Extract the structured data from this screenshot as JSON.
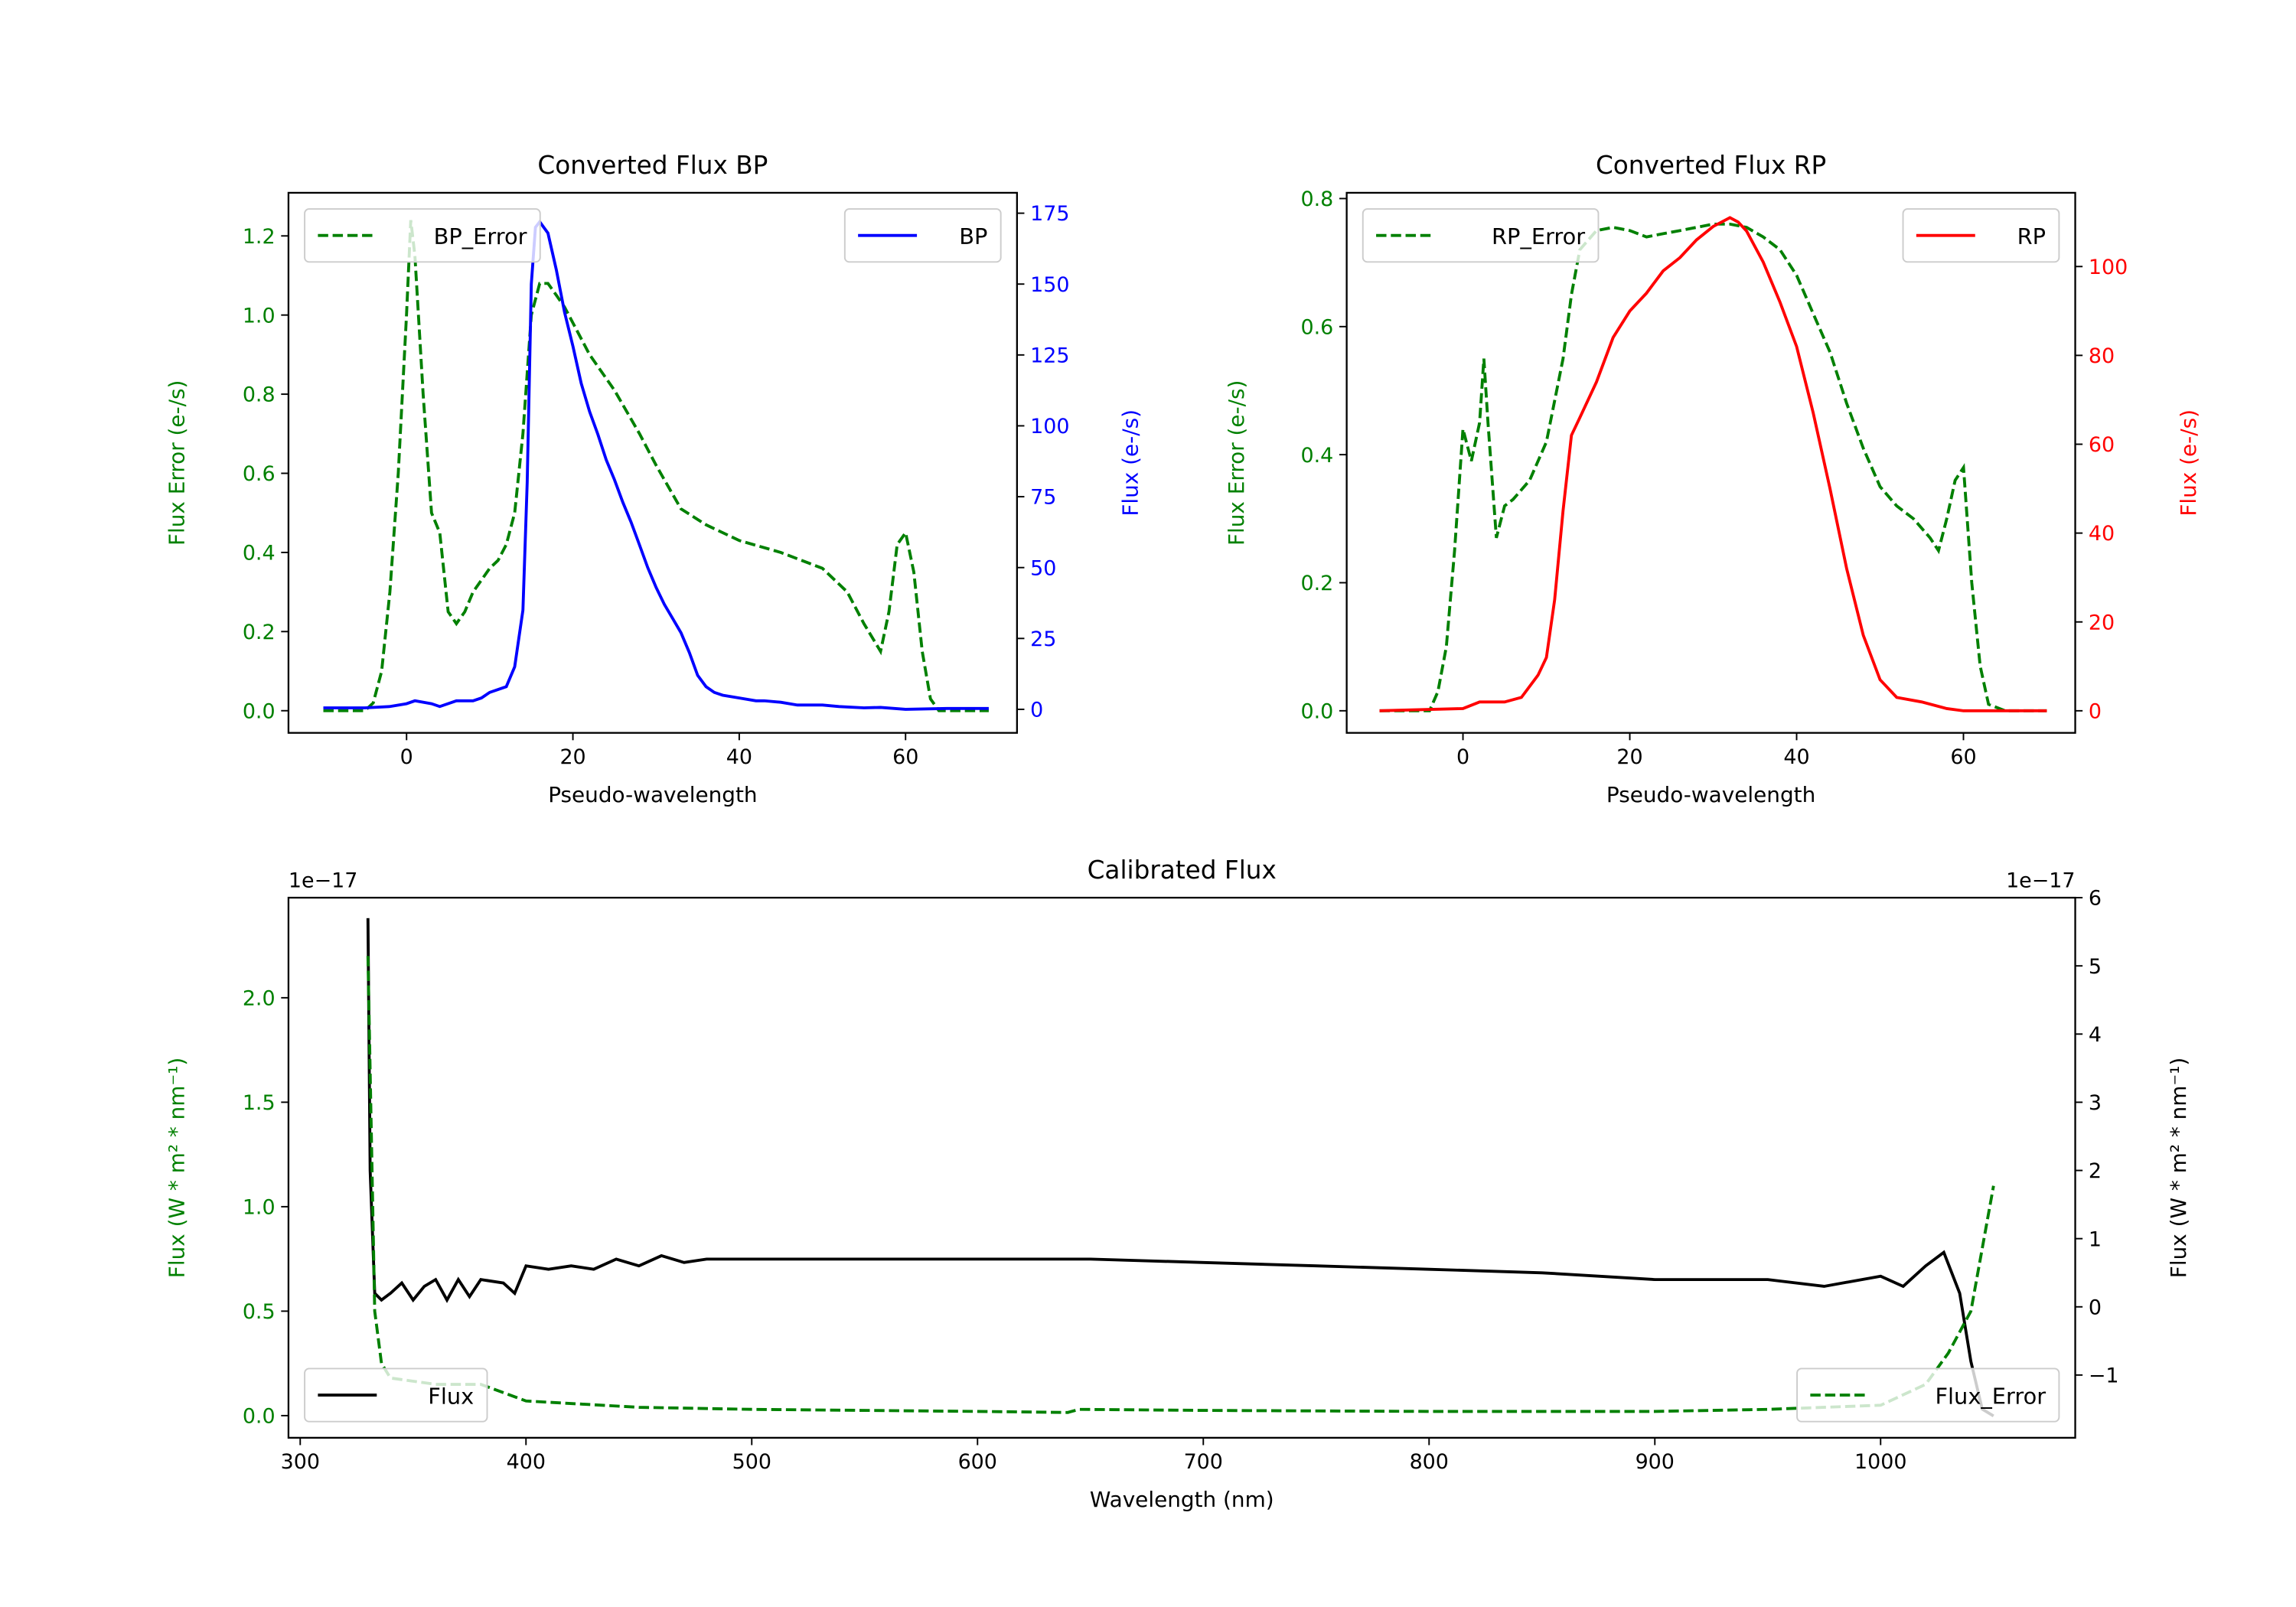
{
  "colors": {
    "green": "#008000",
    "blue": "#0000ff",
    "red": "#ff0000",
    "black": "#000000"
  },
  "chart_data": [
    {
      "type": "line",
      "title": "Converted Flux BP",
      "xlabel": "Pseudo-wavelength",
      "ylabel_left": "Flux Error (e-/s)",
      "ylabel_right": "Flux (e-/s)",
      "xlim": [
        -14.2,
        73.4
      ],
      "ylim_left": [
        -0.056,
        1.309
      ],
      "ylim_right": [
        -8.3,
        182.2
      ],
      "xticks": [
        0,
        20,
        40,
        60
      ],
      "xtick_labels": [
        "0",
        "20",
        "40",
        "60"
      ],
      "yticks_left": [
        0,
        0.2,
        0.4,
        0.6,
        0.8,
        1.0,
        1.2
      ],
      "ytick_labels_left": [
        "0.0",
        "0.2",
        "0.4",
        "0.6",
        "0.8",
        "1.0",
        "1.2"
      ],
      "yticks_right": [
        0,
        25,
        50,
        75,
        100,
        125,
        150,
        175
      ],
      "ytick_labels_right": [
        "0",
        "25",
        "50",
        "75",
        "100",
        "125",
        "150",
        "175"
      ],
      "left_color": "#008000",
      "right_color": "#0000ff",
      "series": [
        {
          "name": "BP_Error",
          "axis": "left",
          "color": "#008000",
          "style": "dashed",
          "legend": "upper-left",
          "x": [
            -10,
            -5,
            -4,
            -3,
            -2,
            -1,
            0,
            0.5,
            1,
            2,
            3,
            4,
            5,
            6,
            7,
            8,
            9,
            10,
            11,
            12,
            13,
            14,
            15,
            16,
            17,
            18,
            19,
            20,
            22,
            25,
            28,
            30,
            33,
            36,
            40,
            45,
            50,
            53,
            55,
            57,
            58,
            59,
            60,
            61,
            62,
            63,
            64,
            70
          ],
          "y": [
            0,
            0,
            0.02,
            0.1,
            0.3,
            0.6,
            1.0,
            1.24,
            1.15,
            0.8,
            0.5,
            0.45,
            0.25,
            0.22,
            0.25,
            0.3,
            0.33,
            0.36,
            0.38,
            0.42,
            0.5,
            0.7,
            1.0,
            1.08,
            1.08,
            1.05,
            1.02,
            0.98,
            0.9,
            0.81,
            0.7,
            0.62,
            0.51,
            0.47,
            0.43,
            0.4,
            0.36,
            0.3,
            0.22,
            0.15,
            0.25,
            0.42,
            0.45,
            0.35,
            0.15,
            0.03,
            0,
            0
          ]
        },
        {
          "name": "BP",
          "axis": "right",
          "color": "#0000ff",
          "style": "solid",
          "legend": "upper-right",
          "x": [
            -10,
            -5,
            -2,
            0,
            1,
            3,
            4,
            6,
            8,
            9,
            10,
            12,
            13,
            14,
            14.5,
            15,
            15.5,
            16,
            17,
            18,
            19,
            20,
            21,
            22,
            23,
            24,
            25,
            26,
            27,
            28,
            29,
            30,
            31,
            32,
            33,
            34,
            35,
            36,
            37,
            38,
            40,
            42,
            43,
            45,
            47,
            50,
            52,
            55,
            57,
            60,
            65,
            70
          ],
          "y": [
            0.5,
            0.5,
            1,
            2,
            3,
            2,
            1,
            3,
            3,
            4,
            6,
            8,
            15,
            35,
            80,
            150,
            170,
            172,
            168,
            155,
            140,
            128,
            115,
            105,
            97,
            88,
            81,
            73,
            66,
            58,
            50,
            43,
            37,
            32,
            27,
            20,
            12,
            8,
            6,
            5,
            4,
            3,
            3,
            2.5,
            1.5,
            1.5,
            1,
            0.5,
            0.7,
            0,
            0.3,
            0.3
          ]
        }
      ]
    },
    {
      "type": "line",
      "title": "Converted Flux RP",
      "xlabel": "Pseudo-wavelength",
      "ylabel_left": "Flux Error (e-/s)",
      "ylabel_right": "Flux (e-/s)",
      "xlim": [
        -13.94,
        73.4
      ],
      "ylim_left": [
        -0.0345,
        0.809
      ],
      "ylim_right": [
        -4.97,
        116.6
      ],
      "xticks": [
        0,
        20,
        40,
        60
      ],
      "xtick_labels": [
        "0",
        "20",
        "40",
        "60"
      ],
      "yticks_left": [
        0,
        0.2,
        0.4,
        0.6,
        0.8
      ],
      "ytick_labels_left": [
        "0.0",
        "0.2",
        "0.4",
        "0.6",
        "0.8"
      ],
      "yticks_right": [
        0,
        20,
        40,
        60,
        80,
        100
      ],
      "ytick_labels_right": [
        "0",
        "20",
        "40",
        "60",
        "80",
        "100"
      ],
      "left_color": "#008000",
      "right_color": "#ff0000",
      "series": [
        {
          "name": "RP_Error",
          "axis": "left",
          "color": "#008000",
          "style": "dashed",
          "legend": "upper-left",
          "x": [
            -10,
            -4,
            -3,
            -2,
            -1,
            0,
            1,
            2,
            2.5,
            3,
            4,
            5,
            6,
            8,
            10,
            12,
            13,
            14,
            16,
            18,
            20,
            22,
            24,
            26,
            28,
            30,
            32,
            34,
            36,
            38,
            40,
            42,
            44,
            46,
            48,
            50,
            52,
            54,
            56,
            57,
            58,
            59,
            60,
            61,
            62,
            63,
            65,
            70
          ],
          "y": [
            0,
            0,
            0.03,
            0.1,
            0.25,
            0.44,
            0.39,
            0.45,
            0.55,
            0.45,
            0.27,
            0.32,
            0.33,
            0.36,
            0.42,
            0.55,
            0.65,
            0.72,
            0.75,
            0.755,
            0.75,
            0.74,
            0.745,
            0.75,
            0.755,
            0.76,
            0.76,
            0.755,
            0.74,
            0.72,
            0.68,
            0.62,
            0.56,
            0.48,
            0.41,
            0.35,
            0.32,
            0.3,
            0.27,
            0.25,
            0.3,
            0.36,
            0.38,
            0.2,
            0.07,
            0.01,
            0,
            0
          ]
        },
        {
          "name": "RP",
          "axis": "right",
          "color": "#ff0000",
          "style": "solid",
          "legend": "upper-right",
          "x": [
            -10,
            0,
            2,
            5,
            7,
            9,
            10,
            11,
            12,
            13,
            14,
            16,
            18,
            20,
            22,
            24,
            26,
            28,
            30,
            32,
            33,
            34,
            36,
            38,
            40,
            42,
            44,
            46,
            48,
            50,
            52,
            55,
            58,
            60,
            70
          ],
          "y": [
            0,
            0.5,
            2,
            2,
            3,
            8,
            12,
            25,
            45,
            62,
            66,
            74,
            84,
            90,
            94,
            99,
            102,
            106,
            109,
            111,
            110,
            108,
            101,
            92,
            82,
            67,
            50,
            32,
            17,
            7,
            3,
            2,
            0.5,
            0,
            0
          ]
        }
      ]
    },
    {
      "type": "line",
      "title": "Calibrated Flux",
      "xlabel": "Wavelength (nm)",
      "ylabel_left": "Flux (W * m² * nm⁻¹)",
      "ylabel_right": "Flux (W * m² * nm⁻¹)",
      "offset_left": "1e−17",
      "offset_right": "1e−17",
      "xlim": [
        294.8,
        1086.2
      ],
      "ylim_left": [
        -0.106,
        2.479
      ],
      "ylim_right": [
        -1.92,
        6.0
      ],
      "xticks": [
        300,
        400,
        500,
        600,
        700,
        800,
        900,
        1000
      ],
      "xtick_labels": [
        "300",
        "400",
        "500",
        "600",
        "700",
        "800",
        "900",
        "1000"
      ],
      "yticks_left": [
        0,
        0.5,
        1.0,
        1.5,
        2.0
      ],
      "ytick_labels_left": [
        "0.0",
        "0.5",
        "1.0",
        "1.5",
        "2.0"
      ],
      "yticks_right": [
        -1,
        0,
        1,
        2,
        3,
        4,
        5,
        6
      ],
      "ytick_labels_right": [
        "−1",
        "0",
        "1",
        "2",
        "3",
        "4",
        "5",
        "6"
      ],
      "left_color": "#008000",
      "right_color": "#000000",
      "series": [
        {
          "name": "Flux",
          "axis": "right",
          "color": "#000000",
          "style": "solid",
          "legend": "lower-left",
          "x": [
            330,
            331,
            333,
            336,
            340,
            345,
            350,
            355,
            360,
            365,
            370,
            375,
            380,
            390,
            395,
            400,
            410,
            420,
            430,
            440,
            450,
            460,
            470,
            480,
            500,
            550,
            600,
            650,
            700,
            750,
            800,
            850,
            900,
            950,
            975,
            1000,
            1010,
            1020,
            1028,
            1035,
            1040,
            1045,
            1050
          ],
          "y": [
            5.7,
            2,
            0.2,
            0.1,
            0.2,
            0.35,
            0.1,
            0.3,
            0.4,
            0.1,
            0.4,
            0.15,
            0.4,
            0.35,
            0.2,
            0.6,
            0.55,
            0.6,
            0.55,
            0.7,
            0.6,
            0.75,
            0.65,
            0.7,
            0.7,
            0.7,
            0.7,
            0.7,
            0.65,
            0.6,
            0.55,
            0.5,
            0.4,
            0.4,
            0.3,
            0.45,
            0.3,
            0.6,
            0.8,
            0.2,
            -0.8,
            -1.5,
            -1.6
          ]
        },
        {
          "name": "Flux_Error",
          "axis": "left",
          "color": "#008000",
          "style": "dashed",
          "legend": "lower-right",
          "x": [
            330,
            333,
            336,
            340,
            360,
            380,
            400,
            450,
            500,
            600,
            640,
            645,
            700,
            800,
            900,
            950,
            1000,
            1020,
            1030,
            1040,
            1045,
            1050
          ],
          "y": [
            2.2,
            0.5,
            0.25,
            0.18,
            0.15,
            0.15,
            0.07,
            0.04,
            0.03,
            0.02,
            0.015,
            0.03,
            0.025,
            0.02,
            0.02,
            0.03,
            0.05,
            0.15,
            0.3,
            0.5,
            0.8,
            1.1
          ]
        }
      ]
    }
  ]
}
